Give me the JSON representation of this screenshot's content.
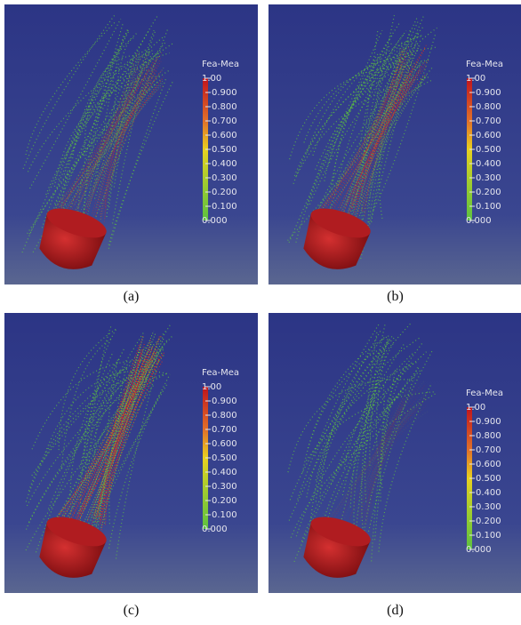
{
  "panels": [
    {
      "caption": "(a)",
      "legend_title": "Fea-Mea",
      "legend_labels": [
        "1.00",
        "0.900",
        "0.800",
        "0.700",
        "0.600",
        "0.500",
        "0.400",
        "0.300",
        "0.200",
        "0.100",
        "0.000"
      ]
    },
    {
      "caption": "(b)",
      "legend_title": "Fea-Mea",
      "legend_labels": [
        "1.00",
        "0.900",
        "0.800",
        "0.700",
        "0.600",
        "0.500",
        "0.400",
        "0.300",
        "0.200",
        "0.100",
        "0.000"
      ]
    },
    {
      "caption": "(c)",
      "legend_title": "Fea-Mea",
      "legend_labels": [
        "1.00",
        "0.900",
        "0.800",
        "0.700",
        "0.600",
        "0.500",
        "0.400",
        "0.300",
        "0.200",
        "0.100",
        "0.000"
      ]
    },
    {
      "caption": "(d)",
      "legend_title": "Fea-Mea",
      "legend_labels": [
        "1.00",
        "0.900",
        "0.800",
        "0.700",
        "0.600",
        "0.500",
        "0.400",
        "0.300",
        "0.200",
        "0.100",
        "0.000"
      ]
    }
  ]
}
